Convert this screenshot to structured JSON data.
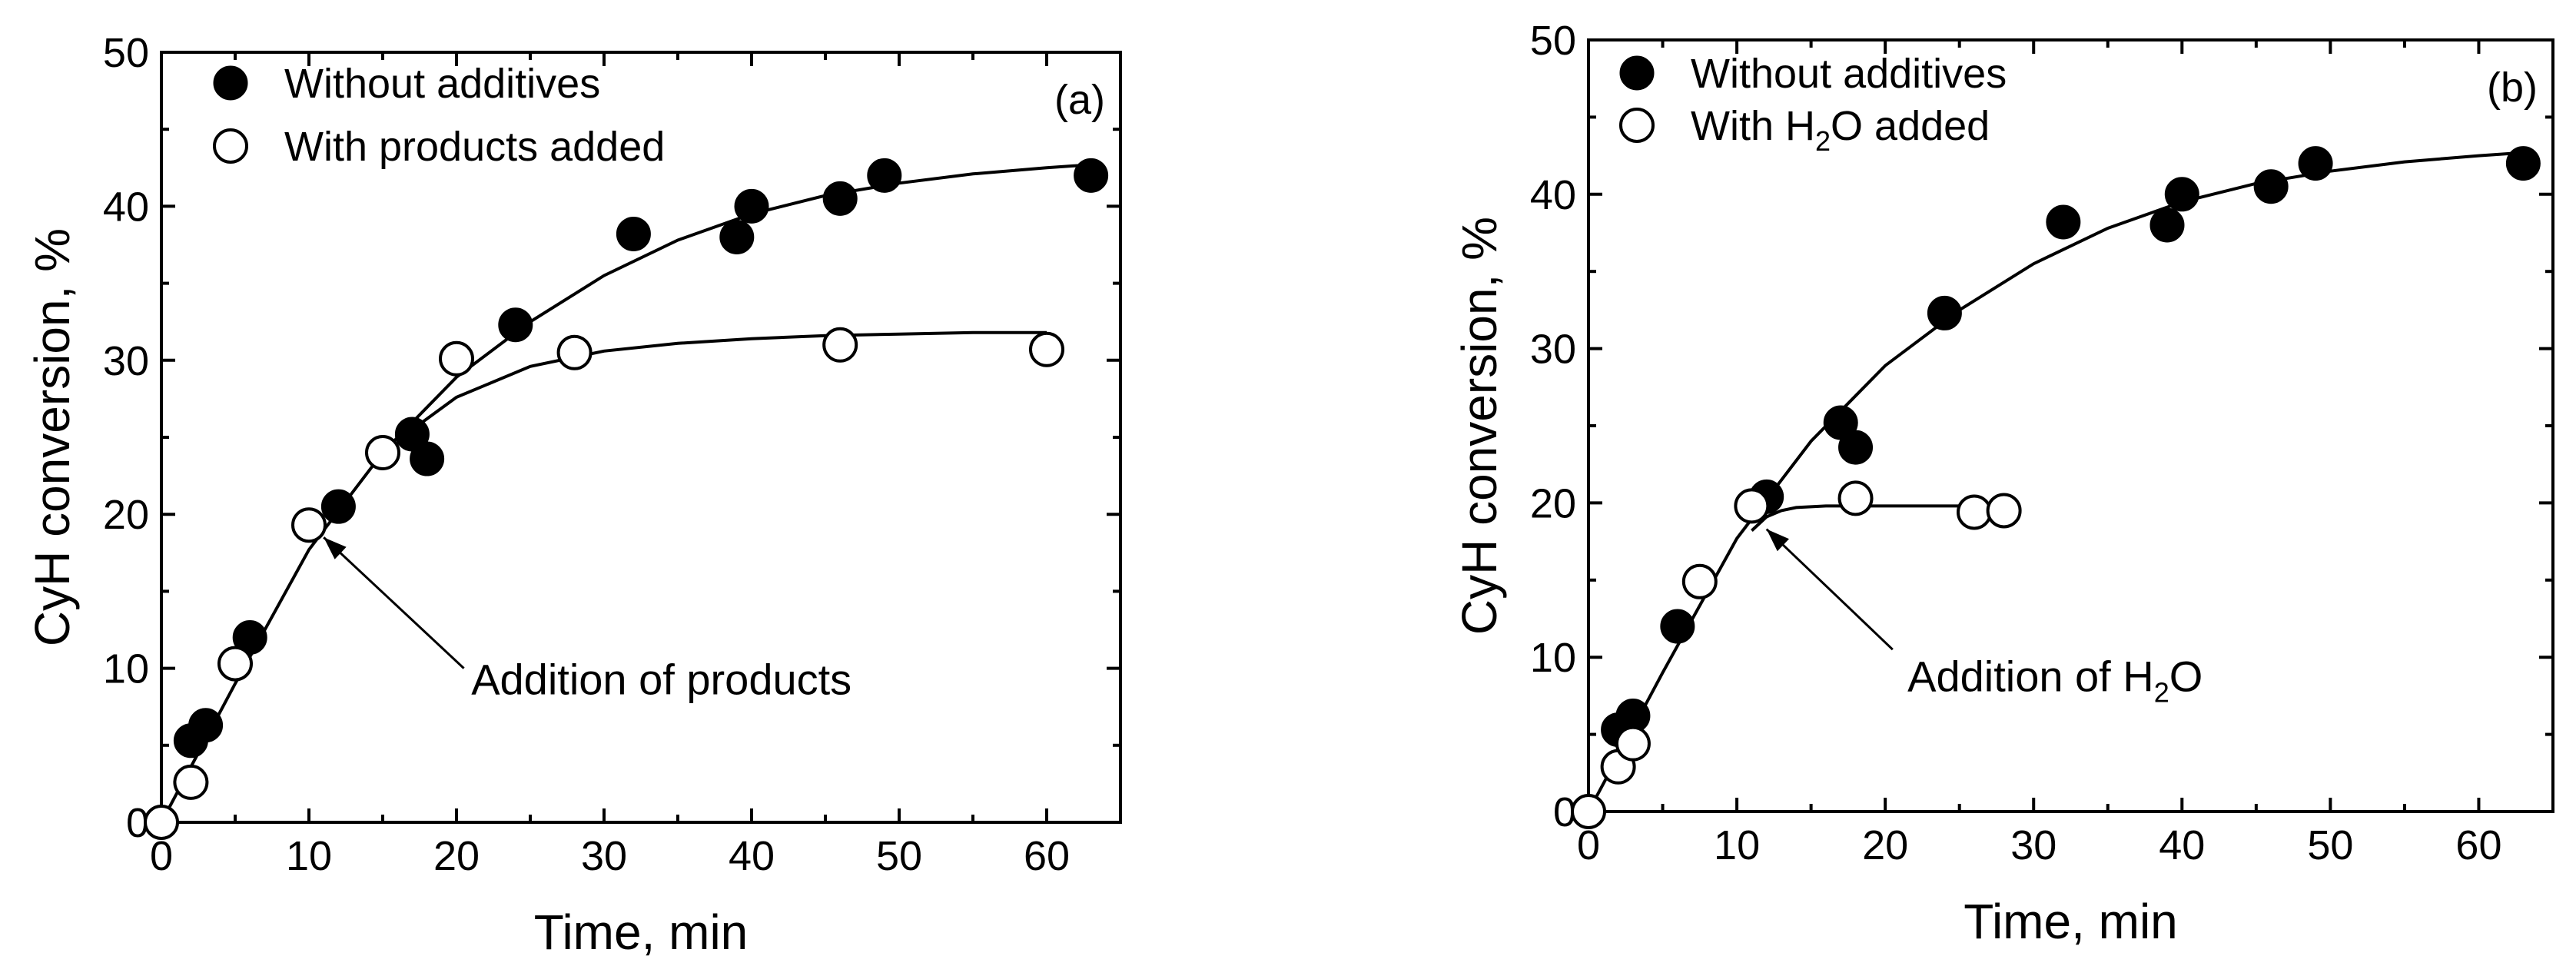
{
  "chart_data": [
    {
      "type": "scatter",
      "panel_label": "(a)",
      "xlabel": "Time, min",
      "ylabel": "CyH conversion, %",
      "xlim": [
        0,
        65
      ],
      "ylim": [
        0,
        50
      ],
      "xticks": [
        0,
        10,
        20,
        30,
        40,
        50,
        60
      ],
      "yticks": [
        0,
        10,
        20,
        30,
        40,
        50
      ],
      "legend_position": "top-left",
      "series": [
        {
          "name": "Without additives",
          "marker": "filled-circle",
          "x": [
            2,
            3,
            6,
            12,
            17,
            18,
            24,
            32,
            39,
            40,
            46,
            49,
            63
          ],
          "y": [
            5.3,
            6.3,
            12.0,
            20.5,
            25.2,
            23.6,
            32.3,
            38.2,
            38.0,
            40.0,
            40.5,
            42.0,
            42.0
          ]
        },
        {
          "name": "With products added",
          "marker": "open-circle",
          "x": [
            0,
            2,
            5,
            10,
            15,
            20,
            28,
            46,
            60
          ],
          "y": [
            0,
            2.6,
            10.3,
            19.3,
            24.0,
            30.1,
            30.5,
            31.0,
            30.7
          ]
        }
      ],
      "fit_curves": [
        {
          "name": "Without additives fit",
          "from_x": 0,
          "to_x": 63,
          "x": [
            0,
            5,
            10,
            15,
            20,
            25,
            30,
            35,
            40,
            45,
            50,
            55,
            60,
            63
          ],
          "y": [
            0,
            9.0,
            17.7,
            24.0,
            28.9,
            32.5,
            35.5,
            37.8,
            39.5,
            40.7,
            41.5,
            42.1,
            42.5,
            42.7
          ]
        },
        {
          "name": "With products added fit",
          "from_x": 17,
          "to_x": 60,
          "x": [
            17,
            20,
            25,
            30,
            35,
            40,
            45,
            50,
            55,
            60
          ],
          "y": [
            25.5,
            27.6,
            29.6,
            30.6,
            31.1,
            31.4,
            31.6,
            31.7,
            31.8,
            31.8
          ]
        }
      ],
      "annotation": {
        "text": "Addition of products",
        "subscript": "",
        "text_after": "",
        "arrow_to": {
          "x": 11,
          "y": 18.5
        },
        "arrow_from": {
          "x": 20.5,
          "y": 10
        },
        "text_at": {
          "x": 21,
          "y": 9.3
        }
      }
    },
    {
      "type": "scatter",
      "panel_label": "(b)",
      "xlabel": "Time, min",
      "ylabel": "CyH conversion, %",
      "xlim": [
        0,
        65
      ],
      "ylim": [
        0,
        50
      ],
      "xticks": [
        0,
        10,
        20,
        30,
        40,
        50,
        60
      ],
      "yticks": [
        0,
        10,
        20,
        30,
        40,
        50
      ],
      "legend_position": "top-left",
      "series": [
        {
          "name": "Without additives",
          "marker": "filled-circle",
          "x": [
            2,
            3,
            6,
            12,
            17,
            18,
            24,
            32,
            39,
            40,
            46,
            49,
            63
          ],
          "y": [
            5.3,
            6.2,
            12.0,
            20.4,
            25.2,
            23.6,
            32.3,
            38.2,
            38.0,
            40.0,
            40.5,
            42.0,
            42.0
          ]
        },
        {
          "name": "With H",
          "name_sub": "2",
          "name_after": "O added",
          "marker": "open-circle",
          "x": [
            0,
            2,
            3,
            7.5,
            11,
            18,
            26,
            28
          ],
          "y": [
            0,
            2.9,
            4.4,
            14.9,
            19.8,
            20.3,
            19.4,
            19.5
          ]
        }
      ],
      "fit_curves": [
        {
          "name": "Without additives fit",
          "from_x": 0,
          "to_x": 63,
          "x": [
            0,
            5,
            10,
            15,
            20,
            25,
            30,
            35,
            40,
            45,
            50,
            55,
            60,
            63
          ],
          "y": [
            0,
            9.0,
            17.7,
            24.0,
            28.9,
            32.5,
            35.5,
            37.8,
            39.5,
            40.7,
            41.5,
            42.1,
            42.5,
            42.7
          ]
        },
        {
          "name": "With H2O added fit",
          "from_x": 11,
          "to_x": 28,
          "x": [
            11,
            12,
            13,
            14,
            16,
            18,
            20,
            24,
            28
          ],
          "y": [
            18.2,
            19.1,
            19.5,
            19.7,
            19.8,
            19.8,
            19.8,
            19.8,
            19.8
          ]
        }
      ],
      "annotation": {
        "text": "Addition of H",
        "subscript": "2",
        "text_after": "O",
        "arrow_to": {
          "x": 12,
          "y": 18.3
        },
        "arrow_from": {
          "x": 20.5,
          "y": 10.5
        },
        "text_at": {
          "x": 21.5,
          "y": 8.8
        }
      }
    }
  ]
}
